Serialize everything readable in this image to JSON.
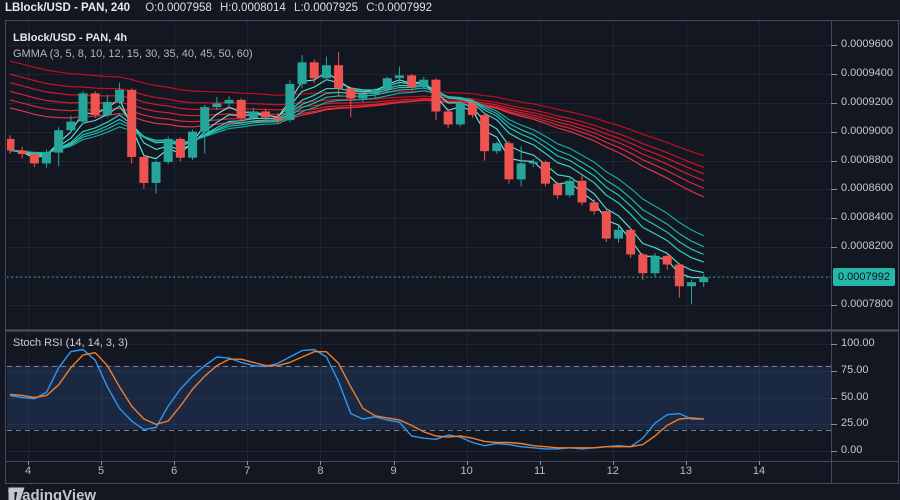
{
  "header": {
    "symbol": "LBlock/USD - PAN, 240",
    "items": [
      {
        "label": "O:",
        "value": "0.0007958"
      },
      {
        "label": "H:",
        "value": "0.0008014"
      },
      {
        "label": "L:",
        "value": "0.0007925"
      },
      {
        "label": "C:",
        "value": "0.0007992"
      }
    ]
  },
  "legend": {
    "title": "LBlock/USD - PAN, 4h",
    "indicator": "GMMA (3, 5, 8, 10, 12, 15, 30, 35, 40, 45, 50, 60)"
  },
  "stoch_label": "Stoch RSI (14, 14, 3, 3)",
  "watermark": "TradingView",
  "price_axis": {
    "ticks": [
      {
        "label": "0.0009600",
        "value": 9600
      },
      {
        "label": "0.0009400",
        "value": 9400
      },
      {
        "label": "0.0009200",
        "value": 9200
      },
      {
        "label": "0.0009000",
        "value": 9000
      },
      {
        "label": "0.0008800",
        "value": 8800
      },
      {
        "label": "0.0008600",
        "value": 8600
      },
      {
        "label": "0.0008400",
        "value": 8400
      },
      {
        "label": "0.0008200",
        "value": 8200
      },
      {
        "label": "0.0007800",
        "value": 7800
      }
    ],
    "current": "0.0007992",
    "current_value": 7992
  },
  "time_axis": {
    "ticks": [
      {
        "label": "4",
        "value": 4
      },
      {
        "label": "5",
        "value": 5
      },
      {
        "label": "6",
        "value": 6
      },
      {
        "label": "7",
        "value": 7
      },
      {
        "label": "8",
        "value": 8
      },
      {
        "label": "9",
        "value": 9
      },
      {
        "label": "10",
        "value": 10
      },
      {
        "label": "11",
        "value": 11
      },
      {
        "label": "12",
        "value": 12
      },
      {
        "label": "13",
        "value": 13
      },
      {
        "label": "14",
        "value": 14
      }
    ]
  },
  "chart_data": {
    "type": "candlestick",
    "title": "LBlock/USD - PAN",
    "timeframe": "4h",
    "price_unit": 1e-07,
    "note": "prices in units of 0.0000001 USD; candles are 4h bars from day 4 to day 13 of the month",
    "ylim": [
      7800,
      9600
    ],
    "y_ticks": [
      7800,
      8000,
      8200,
      8400,
      8600,
      8800,
      9000,
      9200,
      9400,
      9600
    ],
    "last_price": 7992,
    "colors": {
      "up": "#26a69a",
      "down": "#ef5350",
      "price_line": "#25b8a8"
    },
    "candles_ohlc": [
      [
        8950,
        8975,
        8845,
        8870
      ],
      [
        8870,
        8895,
        8815,
        8845
      ],
      [
        8845,
        8860,
        8755,
        8780
      ],
      [
        8780,
        8875,
        8750,
        8855
      ],
      [
        8855,
        9030,
        8760,
        9010
      ],
      [
        9010,
        9110,
        8995,
        9070
      ],
      [
        9070,
        9280,
        9055,
        9265
      ],
      [
        9265,
        9280,
        9095,
        9115
      ],
      [
        9115,
        9255,
        9100,
        9205
      ],
      [
        9205,
        9340,
        9190,
        9290
      ],
      [
        9290,
        9300,
        8780,
        8825
      ],
      [
        8825,
        8835,
        8605,
        8645
      ],
      [
        8645,
        8800,
        8570,
        8790
      ],
      [
        8790,
        8965,
        8775,
        8950
      ],
      [
        8950,
        8960,
        8795,
        8820
      ],
      [
        8820,
        9015,
        8805,
        9000
      ],
      [
        9000,
        9185,
        8850,
        9170
      ],
      [
        9170,
        9240,
        9150,
        9195
      ],
      [
        9195,
        9245,
        9160,
        9220
      ],
      [
        9220,
        9230,
        9075,
        9095
      ],
      [
        9095,
        9165,
        9080,
        9140
      ],
      [
        9140,
        9155,
        9080,
        9100
      ],
      [
        9100,
        9130,
        9055,
        9080
      ],
      [
        9080,
        9355,
        9065,
        9330
      ],
      [
        9330,
        9530,
        9300,
        9480
      ],
      [
        9480,
        9500,
        9335,
        9370
      ],
      [
        9370,
        9520,
        9355,
        9460
      ],
      [
        9460,
        9550,
        9250,
        9300
      ],
      [
        9300,
        9310,
        9100,
        9230
      ],
      [
        9230,
        9280,
        9205,
        9260
      ],
      [
        9260,
        9300,
        9235,
        9290
      ],
      [
        9290,
        9380,
        9275,
        9370
      ],
      [
        9370,
        9450,
        9330,
        9390
      ],
      [
        9390,
        9400,
        9285,
        9310
      ],
      [
        9310,
        9380,
        9295,
        9360
      ],
      [
        9360,
        9370,
        9080,
        9140
      ],
      [
        9140,
        9160,
        9025,
        9050
      ],
      [
        9050,
        9215,
        9035,
        9200
      ],
      [
        9200,
        9210,
        9095,
        9115
      ],
      [
        9115,
        9125,
        8800,
        8865
      ],
      [
        8865,
        8930,
        8845,
        8920
      ],
      [
        8920,
        8935,
        8640,
        8670
      ],
      [
        8670,
        8900,
        8620,
        8780
      ],
      [
        8780,
        8810,
        8755,
        8790
      ],
      [
        8790,
        8800,
        8620,
        8640
      ],
      [
        8640,
        8650,
        8535,
        8560
      ],
      [
        8560,
        8680,
        8545,
        8660
      ],
      [
        8660,
        8700,
        8490,
        8510
      ],
      [
        8510,
        8530,
        8425,
        8450
      ],
      [
        8450,
        8460,
        8235,
        8260
      ],
      [
        8260,
        8345,
        8230,
        8320
      ],
      [
        8320,
        8330,
        8125,
        8150
      ],
      [
        8150,
        8160,
        7975,
        8020
      ],
      [
        8020,
        8160,
        7995,
        8140
      ],
      [
        8140,
        8150,
        8045,
        8080
      ],
      [
        8080,
        8090,
        7850,
        7930
      ],
      [
        7930,
        7975,
        7805,
        7958
      ],
      [
        7958,
        8014,
        7925,
        7992
      ]
    ],
    "gmma": {
      "short_periods": [
        3,
        5,
        8,
        10,
        12,
        15
      ],
      "long_periods": [
        30,
        35,
        40,
        45,
        50,
        60
      ],
      "long_seeds": [
        9185,
        9240,
        9300,
        9360,
        9420,
        9510
      ],
      "short_colors": [
        "#73f2e4",
        "#53e9d9",
        "#3bdfcf",
        "#2ad2c2",
        "#1ec4b4",
        "#16b4a5"
      ],
      "long_colors": [
        "#f23645",
        "#ee2b3b",
        "#e92232",
        "#e31a29",
        "#dc1221",
        "#d40c1a"
      ]
    },
    "stoch_rsi": {
      "params": [
        14,
        14,
        3,
        3
      ],
      "range": [
        0,
        100
      ],
      "upper_band": 80,
      "lower_band": 20,
      "band_fill": "rgba(56,112,196,0.20)",
      "y_ticks": [
        0,
        25,
        50,
        75,
        100
      ],
      "y_tick_labels": [
        "0.00",
        "25.00",
        "50.00",
        "75.00",
        "100.00"
      ],
      "k_color": "#2f96f2",
      "d_color": "#ef7d2d",
      "k": [
        52,
        50,
        49,
        55,
        78,
        93,
        95,
        85,
        60,
        40,
        28,
        20,
        22,
        42,
        58,
        70,
        80,
        88,
        87,
        83,
        80,
        79,
        82,
        88,
        94,
        95,
        88,
        65,
        35,
        30,
        32,
        29,
        27,
        14,
        12,
        11,
        15,
        13,
        8,
        5,
        7,
        6,
        4,
        3,
        2,
        2,
        3,
        2,
        3,
        4,
        5,
        4,
        12,
        26,
        34,
        35,
        30,
        30
      ],
      "d": [
        53,
        52,
        50,
        52,
        62,
        78,
        90,
        92,
        80,
        60,
        42,
        30,
        25,
        28,
        42,
        58,
        70,
        80,
        86,
        86,
        83,
        80,
        80,
        83,
        88,
        93,
        93,
        82,
        60,
        40,
        33,
        31,
        29,
        24,
        18,
        14,
        13,
        14,
        12,
        9,
        8,
        8,
        7,
        5,
        4,
        3,
        3,
        3,
        3,
        4,
        4,
        4,
        6,
        14,
        24,
        30,
        31,
        30
      ]
    }
  }
}
